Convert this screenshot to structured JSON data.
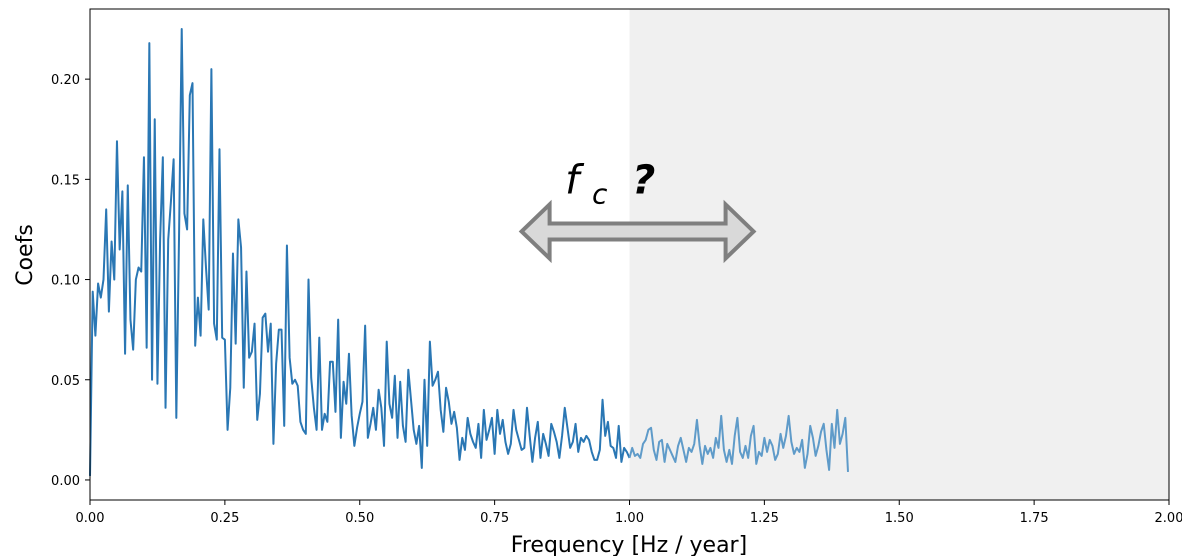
{
  "chart_data": {
    "type": "line",
    "xlabel": "Frequency [Hz / year]",
    "ylabel": "Coefs",
    "xlim": [
      0,
      2
    ],
    "ylim": [
      -0.01,
      0.235
    ],
    "x_ticks": [
      0,
      0.25,
      0.5,
      0.75,
      1.0,
      1.25,
      1.5,
      1.75,
      2.0
    ],
    "x_tick_labels": [
      "0.00",
      "0.25",
      "0.50",
      "0.75",
      "1.00",
      "1.25",
      "1.50",
      "1.75",
      "2.00"
    ],
    "y_ticks": [
      0,
      0.05,
      0.1,
      0.15,
      0.2
    ],
    "y_tick_labels": [
      "0.00",
      "0.05",
      "0.10",
      "0.15",
      "0.20"
    ],
    "grid": false,
    "shaded_region": {
      "x_range": [
        1.0,
        2.0
      ],
      "color": "#f0f0f0"
    },
    "annotation": {
      "text_main": "f",
      "text_sub": "c",
      "text_suffix": "?",
      "arrow": "double-headed horizontal",
      "arrow_x_range": [
        0.8,
        1.23
      ],
      "arrow_y": 0.124,
      "text_x": 0.94,
      "text_y": 0.152
    },
    "series_color": "#2a77b4",
    "series_color_shaded": "#5f9bc9",
    "x_start": 0,
    "x_step": 0.005,
    "y": [
      0.002,
      0.094,
      0.072,
      0.098,
      0.091,
      0.1,
      0.135,
      0.084,
      0.119,
      0.1,
      0.169,
      0.115,
      0.144,
      0.063,
      0.147,
      0.08,
      0.065,
      0.1,
      0.106,
      0.104,
      0.161,
      0.066,
      0.218,
      0.05,
      0.18,
      0.048,
      0.12,
      0.161,
      0.036,
      0.12,
      0.139,
      0.16,
      0.031,
      0.121,
      0.225,
      0.133,
      0.125,
      0.192,
      0.198,
      0.067,
      0.091,
      0.072,
      0.13,
      0.106,
      0.085,
      0.205,
      0.078,
      0.07,
      0.165,
      0.071,
      0.07,
      0.025,
      0.046,
      0.113,
      0.068,
      0.13,
      0.116,
      0.046,
      0.104,
      0.061,
      0.064,
      0.078,
      0.03,
      0.043,
      0.081,
      0.083,
      0.064,
      0.078,
      0.018,
      0.058,
      0.075,
      0.075,
      0.027,
      0.117,
      0.061,
      0.048,
      0.05,
      0.047,
      0.029,
      0.025,
      0.023,
      0.1,
      0.051,
      0.036,
      0.025,
      0.071,
      0.025,
      0.033,
      0.029,
      0.059,
      0.059,
      0.034,
      0.08,
      0.021,
      0.049,
      0.038,
      0.063,
      0.032,
      0.017,
      0.026,
      0.033,
      0.039,
      0.077,
      0.021,
      0.028,
      0.036,
      0.025,
      0.045,
      0.036,
      0.017,
      0.069,
      0.038,
      0.031,
      0.052,
      0.021,
      0.049,
      0.027,
      0.019,
      0.055,
      0.04,
      0.025,
      0.018,
      0.027,
      0.006,
      0.05,
      0.017,
      0.069,
      0.047,
      0.05,
      0.054,
      0.035,
      0.024,
      0.046,
      0.039,
      0.028,
      0.034,
      0.026,
      0.01,
      0.021,
      0.015,
      0.031,
      0.023,
      0.019,
      0.016,
      0.028,
      0.011,
      0.035,
      0.02,
      0.025,
      0.031,
      0.013,
      0.035,
      0.023,
      0.03,
      0.019,
      0.013,
      0.018,
      0.035,
      0.025,
      0.02,
      0.015,
      0.016,
      0.036,
      0.022,
      0.009,
      0.021,
      0.029,
      0.011,
      0.023,
      0.018,
      0.012,
      0.028,
      0.024,
      0.019,
      0.011,
      0.022,
      0.036,
      0.026,
      0.016,
      0.019,
      0.028,
      0.014,
      0.021,
      0.019,
      0.022,
      0.02,
      0.014,
      0.01,
      0.01,
      0.015,
      0.04,
      0.022,
      0.029,
      0.017,
      0.016,
      0.011,
      0.027,
      0.009,
      0.016,
      0.014,
      0.011,
      0.016,
      0.012,
      0.013,
      0.011,
      0.018,
      0.02,
      0.025,
      0.026,
      0.015,
      0.01,
      0.019,
      0.02,
      0.009,
      0.018,
      0.015,
      0.012,
      0.009,
      0.017,
      0.021,
      0.015,
      0.009,
      0.016,
      0.014,
      0.018,
      0.03,
      0.017,
      0.008,
      0.017,
      0.013,
      0.016,
      0.011,
      0.021,
      0.016,
      0.032,
      0.015,
      0.009,
      0.015,
      0.008,
      0.022,
      0.031,
      0.014,
      0.011,
      0.017,
      0.011,
      0.022,
      0.027,
      0.008,
      0.014,
      0.012,
      0.021,
      0.014,
      0.02,
      0.017,
      0.01,
      0.013,
      0.023,
      0.016,
      0.022,
      0.032,
      0.019,
      0.013,
      0.016,
      0.014,
      0.02,
      0.006,
      0.013,
      0.027,
      0.021,
      0.012,
      0.017,
      0.024,
      0.028,
      0.015,
      0.005,
      0.028,
      0.016,
      0.035,
      0.018,
      0.023,
      0.031,
      0.004
    ]
  }
}
